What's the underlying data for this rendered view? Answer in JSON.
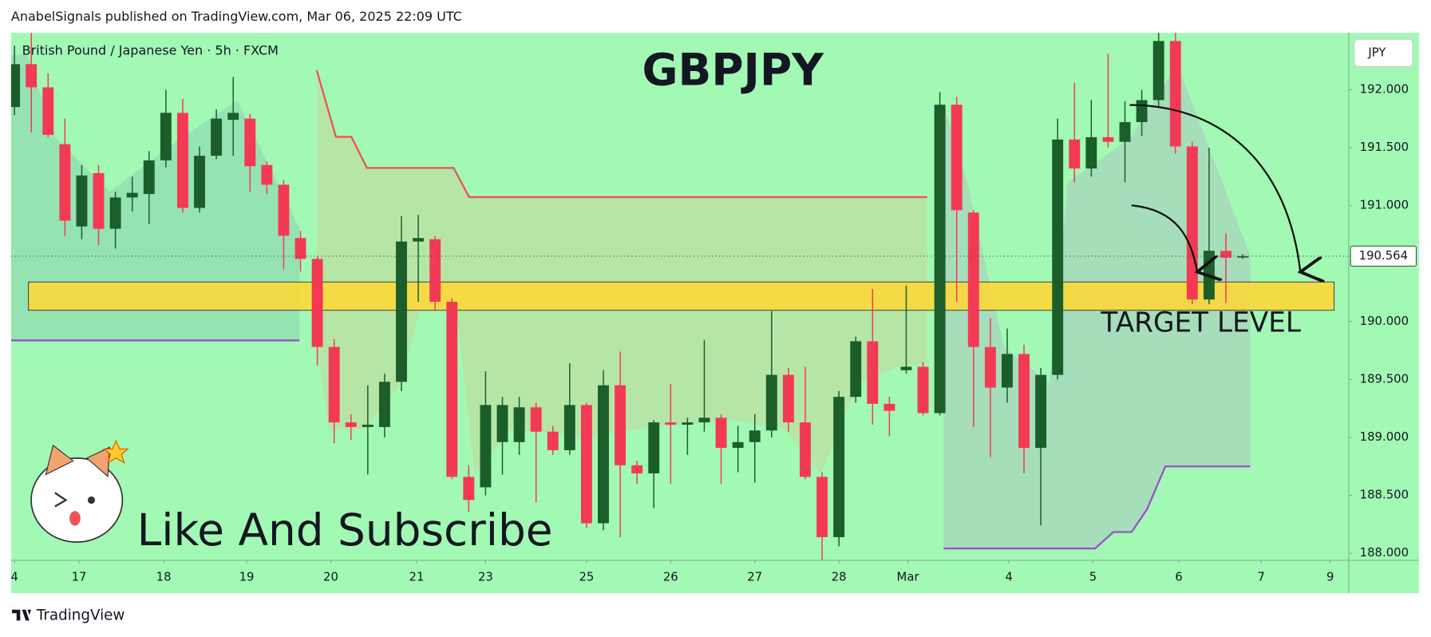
{
  "header": {
    "byline": "AnabelSignals published on TradingView.com, Mar 06, 2025 22:09 UTC"
  },
  "chart_data": {
    "type": "candlestick",
    "title": "GBPJPY",
    "subtitle": "British Pound / Japanese Yen · 5h · FXCM",
    "currency": "JPY",
    "annotations": [
      "TARGET LEVEL",
      "Like And Subscribe"
    ],
    "up_color": "#1b5e2a",
    "down_color": "#f23a55",
    "open": [
      191.85,
      192.22,
      192.02,
      191.53,
      190.82,
      191.28,
      190.8,
      191.07,
      191.1,
      191.39,
      191.8,
      190.98,
      191.43,
      191.74,
      191.75,
      191.35,
      191.18,
      190.72,
      190.54,
      189.78,
      189.13,
      189.09,
      189.09,
      189.48,
      190.69,
      190.71,
      190.17,
      188.66,
      188.57,
      188.96,
      188.96,
      189.26,
      189.05,
      188.89,
      189.28,
      188.26,
      189.45,
      188.76,
      188.69,
      189.13,
      189.11,
      189.13,
      189.17,
      188.91,
      188.96,
      189.06,
      189.54,
      189.13,
      188.66,
      188.14,
      189.35,
      189.83,
      189.29,
      189.58,
      189.61,
      189.21,
      191.87,
      190.94,
      189.78,
      189.43,
      189.72,
      188.91,
      189.54,
      191.57,
      191.32,
      191.59,
      191.55,
      191.72,
      191.91,
      192.42,
      191.51,
      190.19,
      190.61,
      190.56
    ],
    "high": [
      192.38,
      192.6,
      192.14,
      191.75,
      191.35,
      191.35,
      191.12,
      191.25,
      191.47,
      192.0,
      191.92,
      191.51,
      191.83,
      192.11,
      191.79,
      191.38,
      191.22,
      190.78,
      190.56,
      189.85,
      189.2,
      189.45,
      189.55,
      190.91,
      190.92,
      190.74,
      190.2,
      188.76,
      189.57,
      189.35,
      189.35,
      189.3,
      189.1,
      189.64,
      189.3,
      189.58,
      189.74,
      188.8,
      189.15,
      189.46,
      189.17,
      189.84,
      189.2,
      189.1,
      189.2,
      190.09,
      189.6,
      189.61,
      188.7,
      189.4,
      189.87,
      190.28,
      189.35,
      190.31,
      189.65,
      191.98,
      191.94,
      190.96,
      190.03,
      189.94,
      189.8,
      189.6,
      191.75,
      192.06,
      191.91,
      192.31,
      191.9,
      192.0,
      192.5,
      192.5,
      191.55,
      191.5,
      190.76,
      190.58
    ],
    "low": [
      191.78,
      191.63,
      191.59,
      190.74,
      190.71,
      190.66,
      190.63,
      190.95,
      190.84,
      191.33,
      190.94,
      190.94,
      191.4,
      191.43,
      191.12,
      191.1,
      190.45,
      190.43,
      189.62,
      188.95,
      188.98,
      188.68,
      189.0,
      189.4,
      190.17,
      190.09,
      188.64,
      188.36,
      188.5,
      188.68,
      188.85,
      188.44,
      188.85,
      188.85,
      188.22,
      188.2,
      188.14,
      188.6,
      188.39,
      188.6,
      188.85,
      189.05,
      188.6,
      188.7,
      188.61,
      189.0,
      189.05,
      188.64,
      187.94,
      188.06,
      189.3,
      189.11,
      189.01,
      189.55,
      189.19,
      189.19,
      190.17,
      189.09,
      188.83,
      189.3,
      188.69,
      188.24,
      189.5,
      191.2,
      191.25,
      191.5,
      191.2,
      191.6,
      191.85,
      191.45,
      190.15,
      190.15,
      190.16,
      190.54
    ],
    "close": [
      192.22,
      192.02,
      191.61,
      190.87,
      191.26,
      190.8,
      191.07,
      191.11,
      191.39,
      191.8,
      190.98,
      191.43,
      191.75,
      191.8,
      191.34,
      191.18,
      190.74,
      190.54,
      189.78,
      189.13,
      189.09,
      189.11,
      189.48,
      190.69,
      190.72,
      190.17,
      188.66,
      188.46,
      189.28,
      189.28,
      189.26,
      189.05,
      188.89,
      189.28,
      188.26,
      189.45,
      188.76,
      188.69,
      189.13,
      189.11,
      189.13,
      189.17,
      188.91,
      188.96,
      189.06,
      189.54,
      189.13,
      188.66,
      188.14,
      189.35,
      189.83,
      189.29,
      189.23,
      189.61,
      189.21,
      191.87,
      190.96,
      189.78,
      189.43,
      189.72,
      188.91,
      189.54,
      191.57,
      191.32,
      191.59,
      191.55,
      191.72,
      191.91,
      192.42,
      191.51,
      190.19,
      190.61,
      190.55,
      190.564
    ],
    "ylim": [
      187.94,
      192.49
    ],
    "yticks": [
      {
        "value": 192,
        "label": "192.000"
      },
      {
        "value": 191.5,
        "label": "191.500"
      },
      {
        "value": 191,
        "label": "191.000"
      },
      {
        "value": 190,
        "label": "190.000"
      },
      {
        "value": 189.5,
        "label": "189.500"
      },
      {
        "value": 189,
        "label": "189.000"
      },
      {
        "value": 188.5,
        "label": "188.500"
      },
      {
        "value": 188,
        "label": "188.000"
      }
    ],
    "xlim": [
      -0.2,
      79.3
    ],
    "xticks": [
      {
        "value": 0,
        "label": "4"
      },
      {
        "value": 3.84,
        "label": "17"
      },
      {
        "value": 8.87,
        "label": "18"
      },
      {
        "value": 13.8,
        "label": "19"
      },
      {
        "value": 18.8,
        "label": "20"
      },
      {
        "value": 23.9,
        "label": "21"
      },
      {
        "value": 28,
        "label": "23"
      },
      {
        "value": 34,
        "label": "25"
      },
      {
        "value": 39,
        "label": "26"
      },
      {
        "value": 44,
        "label": "27"
      },
      {
        "value": 49,
        "label": "28"
      },
      {
        "value": 53.1,
        "label": "Mar"
      },
      {
        "value": 59.1,
        "label": "4"
      },
      {
        "value": 64.1,
        "label": "5"
      },
      {
        "value": 69.2,
        "label": "6"
      },
      {
        "value": 74.1,
        "label": "7"
      },
      {
        "value": 78.2,
        "label": "9"
      }
    ],
    "last_price": 190.564
  },
  "footer": {
    "brand": "TradingView"
  }
}
